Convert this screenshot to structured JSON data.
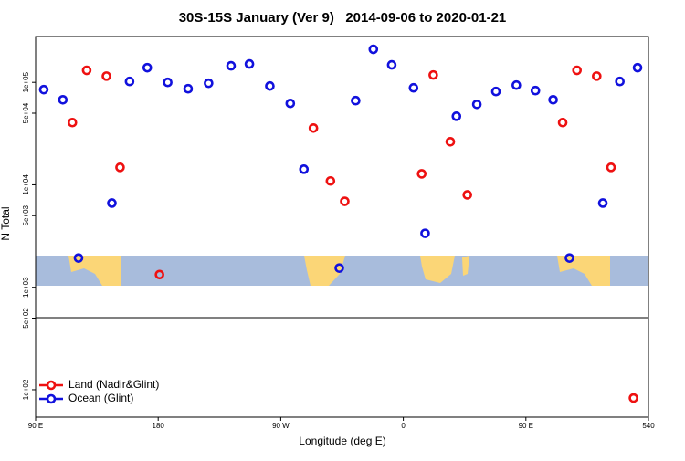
{
  "chart_data": {
    "type": "scatter",
    "title": "30S-15S January (Ver 9)   2014-09-06 to 2020-01-21",
    "x_label": "Longitude (deg E)",
    "y_label": "N Total",
    "log_y": true,
    "legend_position": "bottom-left",
    "xlim": [
      90,
      540
    ],
    "ylim": [
      54,
      280000
    ],
    "xticks": [
      {
        "value": 90,
        "label": "90 E"
      },
      180,
      {
        "value": 270,
        "label": "90 W"
      },
      {
        "value": 360,
        "label": "0"
      },
      {
        "value": 450,
        "label": "90 E"
      },
      540
    ],
    "yticks": [
      {
        "value": 100,
        "label": "1e+02"
      },
      {
        "value": 500,
        "label": "5e+02"
      },
      {
        "value": 1000,
        "label": "1e+03"
      },
      {
        "value": 5000,
        "label": "5e+03"
      },
      {
        "value": 10000,
        "label": "1e+04"
      },
      {
        "value": 50000,
        "label": "5e+04"
      },
      {
        "value": 100000,
        "label": "1e+05"
      }
    ],
    "series": [
      {
        "name": "Land (Nadir&Glint)",
        "color": "#ee1111",
        "x": [
          117,
          127.5,
          142,
          152,
          181,
          294,
          306.5,
          317,
          373.5,
          382,
          394.5,
          407,
          477,
          487.5,
          502,
          512.5,
          529
        ],
        "values": [
          40500,
          131000,
          115000,
          14800,
          1330,
          35800,
          10900,
          6900,
          12800,
          118000,
          26300,
          7980,
          40500,
          131000,
          115000,
          14800,
          83
        ]
      },
      {
        "name": "Ocean (Glint)",
        "color": "#1111dd",
        "x": [
          96,
          110,
          121.5,
          146,
          159,
          172,
          187,
          202,
          217,
          233.5,
          247,
          262,
          277,
          287,
          313,
          325,
          338,
          351.5,
          367.5,
          376,
          399,
          414,
          428,
          443,
          457,
          470,
          482,
          506.5,
          519,
          532
        ],
        "values": [
          84900,
          67600,
          1930,
          6630,
          102000,
          139000,
          100000,
          86600,
          98000,
          145000,
          151000,
          92100,
          62300,
          14200,
          1540,
          66300,
          210000,
          148000,
          88400,
          3360,
          46700,
          61000,
          81400,
          94000,
          83100,
          67600,
          1930,
          6630,
          102000,
          139000
        ]
      }
    ]
  }
}
